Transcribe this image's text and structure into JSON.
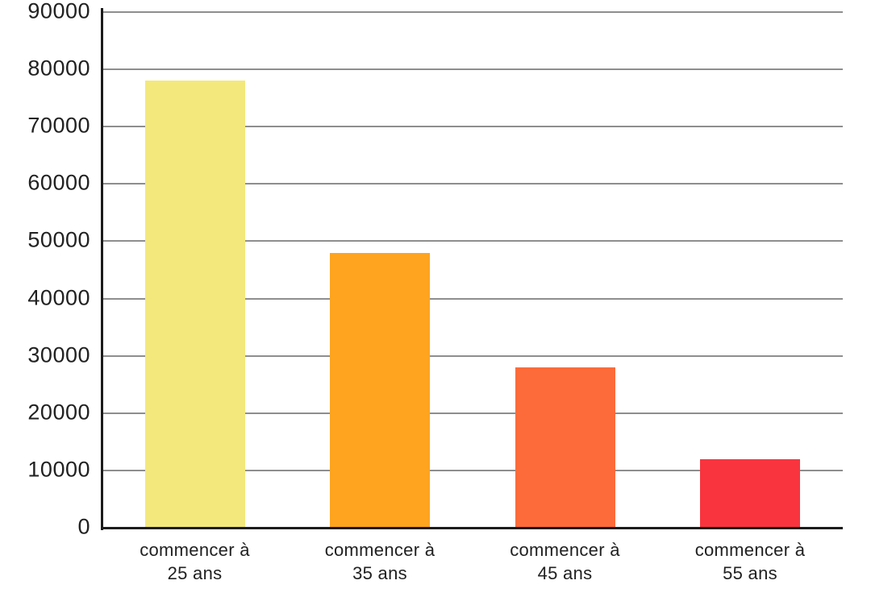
{
  "page": {
    "background_color": "#FFFFFF"
  },
  "chart_data": {
    "type": "bar",
    "title": "",
    "subtitle": "",
    "xlabel": "",
    "ylabel": "",
    "categories": [
      "commencer à 25 ans",
      "commencer à 35 ans",
      "commencer à 45 ans",
      "commencer à 55 ans"
    ],
    "category_lines": [
      [
        "commencer à",
        "25 ans"
      ],
      [
        "commencer à",
        "35 ans"
      ],
      [
        "commencer à",
        "45 ans"
      ],
      [
        "commencer à",
        "55 ans"
      ]
    ],
    "values": [
      78000,
      48000,
      28000,
      12000
    ],
    "bar_colors": [
      "#F3E87C",
      "#FEA41F",
      "#FE6B3A",
      "#F9343F"
    ],
    "ylim": [
      0,
      90000
    ],
    "yticks": [
      0,
      10000,
      20000,
      30000,
      40000,
      50000,
      60000,
      70000,
      80000,
      90000
    ],
    "ytick_labels": [
      "0",
      "10000",
      "20000",
      "30000",
      "40000",
      "50000",
      "60000",
      "70000",
      "80000",
      "90000"
    ],
    "grid": "horizontal",
    "legend": "none",
    "axis_color": "#1C1C1C",
    "gridline_color": "#8E8E8E",
    "text_color": "#212121"
  }
}
